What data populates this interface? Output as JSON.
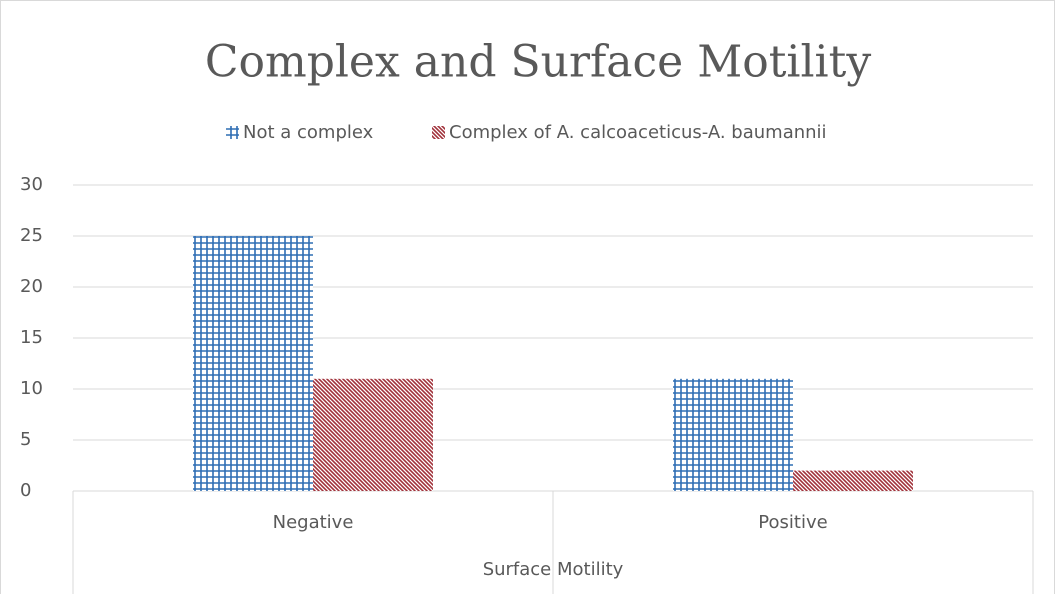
{
  "chart_data": {
    "type": "bar",
    "title": "Complex and Surface Motility",
    "x_label": "Surface Motility",
    "categories": [
      "Negative",
      "Positive"
    ],
    "series": [
      {
        "name": "Not a complex",
        "color": "#2e6db4",
        "values": [
          25,
          11
        ]
      },
      {
        "name": "Complex of A. calcoaceticus-A. baumannii",
        "color": "#a0313a",
        "values": [
          11,
          2
        ]
      }
    ],
    "ylim": [
      0,
      30
    ],
    "yticks": [
      0,
      5,
      10,
      15,
      20,
      25,
      30
    ],
    "grid": true,
    "legend": "top"
  }
}
